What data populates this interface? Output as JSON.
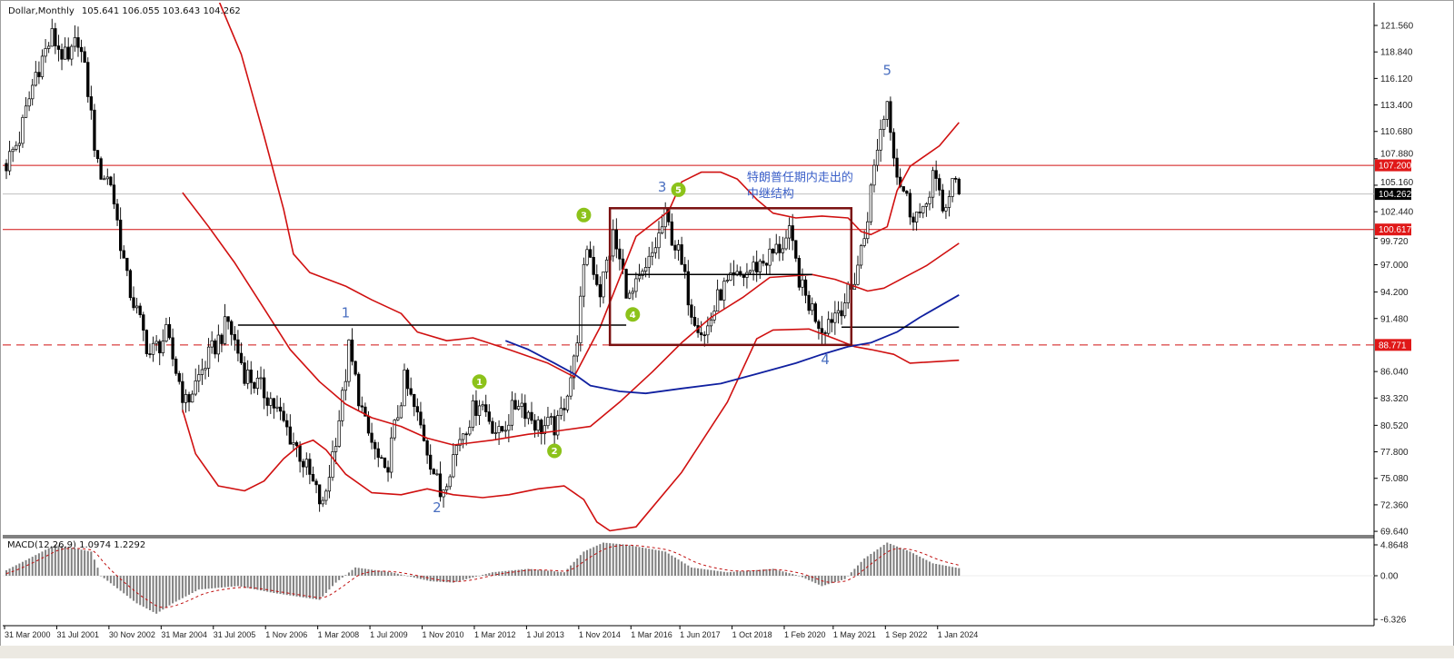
{
  "header": {
    "symbol": "Dollar,Monthly",
    "ohlc": "105.641 106.055 103.643 104.262"
  },
  "colors": {
    "band": "#d01010",
    "ma": "#1020a0",
    "hline": "#d01010",
    "box": "#7a1010",
    "wave_label": "#4a6fc0",
    "circle": "#8cc21a",
    "macd_hist": "#808080",
    "macd_signal": "#c01010"
  },
  "chart_data": {
    "type": "candlestick",
    "title": "Dollar,Monthly",
    "ylim": [
      69.64,
      121.56
    ],
    "grid": false,
    "price_ticks": [
      "121.560",
      "118.840",
      "116.120",
      "113.400",
      "110.680",
      "107.880",
      "105.160",
      "102.440",
      "99.720",
      "97.000",
      "94.200",
      "91.480",
      "86.040",
      "83.320",
      "80.520",
      "77.800",
      "75.080",
      "72.360",
      "69.640"
    ],
    "time_ticks": [
      "31 Mar 2000",
      "31 Jul 2001",
      "30 Nov 2002",
      "31 Mar 2004",
      "31 Jul 2005",
      "1 Nov 2006",
      "1 Mar 2008",
      "1 Jul 2009",
      "1 Nov 2010",
      "1 Mar 2012",
      "1 Jul 2013",
      "1 Nov 2014",
      "1 Mar 2016",
      "1 Jun 2017",
      "1 Oct 2018",
      "1 Feb 2020",
      "1 May 2021",
      "1 Sep 2022",
      "1 Jan 2024"
    ],
    "close_path": [
      [
        "2000-03",
        107.4
      ],
      [
        "2000-07",
        110
      ],
      [
        "2000-12",
        116.7
      ],
      [
        "2001-05",
        120.4
      ],
      [
        "2001-10",
        117.6
      ],
      [
        "2002-01",
        120.4
      ],
      [
        "2002-04",
        114.9
      ],
      [
        "2002-07",
        106.9
      ],
      [
        "2002-11",
        105.5
      ],
      [
        "2003-04",
        95.3
      ],
      [
        "2003-11",
        87.8
      ],
      [
        "2004-04",
        89.7
      ],
      [
        "2004-10",
        82.7
      ],
      [
        "2005-04",
        86.9
      ],
      [
        "2005-11",
        91.1
      ],
      [
        "2006-04",
        86
      ],
      [
        "2006-12",
        83.2
      ],
      [
        "2007-09",
        77.6
      ],
      [
        "2008-04",
        72
      ],
      [
        "2008-10",
        83.2
      ],
      [
        "2008-12",
        88.3
      ],
      [
        "2009-05",
        80.4
      ],
      [
        "2009-11",
        75.2
      ],
      [
        "2010-05",
        85
      ],
      [
        "2010-11",
        79.4
      ],
      [
        "2011-04",
        73.4
      ],
      [
        "2011-10",
        79.4
      ],
      [
        "2012-04",
        83.2
      ],
      [
        "2012-10",
        79.4
      ],
      [
        "2013-04",
        83.2
      ],
      [
        "2013-10",
        80.4
      ],
      [
        "2014-04",
        80.4
      ],
      [
        "2014-09",
        86.9
      ],
      [
        "2015-01",
        99
      ],
      [
        "2015-05",
        94.3
      ],
      [
        "2015-09",
        99.9
      ],
      [
        "2016-02",
        93.4
      ],
      [
        "2016-07",
        96.2
      ],
      [
        "2017-01",
        101.8
      ],
      [
        "2017-05",
        98.1
      ],
      [
        "2017-09",
        92.5
      ],
      [
        "2018-01",
        89.7
      ],
      [
        "2018-06",
        94.3
      ],
      [
        "2019-02",
        96.2
      ],
      [
        "2019-10",
        98.1
      ],
      [
        "2020-03",
        99.9
      ],
      [
        "2020-07",
        94.3
      ],
      [
        "2021-01",
        90.6
      ],
      [
        "2021-06",
        92.5
      ],
      [
        "2021-10",
        94.3
      ],
      [
        "2022-02",
        99.9
      ],
      [
        "2022-06",
        109.3
      ],
      [
        "2022-09",
        113.9
      ],
      [
        "2022-12",
        106.5
      ],
      [
        "2023-04",
        102.7
      ],
      [
        "2023-08",
        101.8
      ],
      [
        "2023-11",
        106.5
      ],
      [
        "2024-02",
        102.3
      ],
      [
        "2024-05",
        105.5
      ],
      [
        "2024-07",
        104.262
      ]
    ],
    "upper_band": [
      [
        "2005-08",
        124.2
      ],
      [
        "2006-03",
        118.6
      ],
      [
        "2006-10",
        110.2
      ],
      [
        "2007-04",
        102.7
      ],
      [
        "2007-07",
        98.1
      ],
      [
        "2007-12",
        96.2
      ],
      [
        "2008-11",
        94.8
      ],
      [
        "2009-07",
        93.4
      ],
      [
        "2010-04",
        92.0
      ],
      [
        "2010-09",
        90.1
      ],
      [
        "2011-06",
        89.2
      ],
      [
        "2012-02",
        89.5
      ],
      [
        "2013-01",
        88.3
      ],
      [
        "2014-01",
        86.9
      ],
      [
        "2014-09",
        85.5
      ],
      [
        "2015-05",
        90.6
      ],
      [
        "2016-04",
        99.9
      ],
      [
        "2017-02",
        102.5
      ],
      [
        "2017-06",
        105.5
      ],
      [
        "2017-12",
        106.5
      ],
      [
        "2018-06",
        106.5
      ],
      [
        "2018-11",
        105.8
      ],
      [
        "2019-05",
        103.7
      ],
      [
        "2019-10",
        102.3
      ],
      [
        "2020-05",
        101.8
      ],
      [
        "2021-01",
        102.0
      ],
      [
        "2021-09",
        101.8
      ],
      [
        "2022-01",
        100.4
      ],
      [
        "2022-04",
        100.1
      ],
      [
        "2022-09",
        100.9
      ],
      [
        "2022-12",
        104.6
      ],
      [
        "2023-04",
        107.1
      ],
      [
        "2024-01",
        109.2
      ],
      [
        "2024-07",
        111.6
      ]
    ],
    "middle_band": [
      [
        "2004-09",
        104.4
      ],
      [
        "2005-05",
        100.9
      ],
      [
        "2006-01",
        97.2
      ],
      [
        "2006-10",
        92.5
      ],
      [
        "2007-06",
        88.3
      ],
      [
        "2008-03",
        85.0
      ],
      [
        "2008-11",
        82.7
      ],
      [
        "2009-07",
        81.3
      ],
      [
        "2010-04",
        80.4
      ],
      [
        "2010-12",
        79.2
      ],
      [
        "2011-08",
        78.5
      ],
      [
        "2012-08",
        79.0
      ],
      [
        "2013-07",
        79.6
      ],
      [
        "2014-03",
        79.9
      ],
      [
        "2015-02",
        80.4
      ],
      [
        "2015-11",
        82.9
      ],
      [
        "2016-09",
        86.0
      ],
      [
        "2017-06",
        89.0
      ],
      [
        "2018-03",
        91.6
      ],
      [
        "2019-01",
        93.7
      ],
      [
        "2019-09",
        95.7
      ],
      [
        "2020-10",
        96.0
      ],
      [
        "2021-05",
        95.5
      ],
      [
        "2022-03",
        94.3
      ],
      [
        "2022-08",
        94.6
      ],
      [
        "2023-09",
        96.9
      ],
      [
        "2024-07",
        99.2
      ]
    ],
    "lower_band": [
      [
        "2004-09",
        82.1
      ],
      [
        "2005-01",
        77.6
      ],
      [
        "2005-08",
        74.3
      ],
      [
        "2006-04",
        73.8
      ],
      [
        "2006-10",
        74.8
      ],
      [
        "2007-04",
        77.1
      ],
      [
        "2007-09",
        78.5
      ],
      [
        "2008-01",
        79.0
      ],
      [
        "2008-05",
        78.0
      ],
      [
        "2008-11",
        75.5
      ],
      [
        "2009-07",
        73.6
      ],
      [
        "2010-04",
        73.4
      ],
      [
        "2010-12",
        74.0
      ],
      [
        "2011-08",
        73.4
      ],
      [
        "2012-05",
        73.1
      ],
      [
        "2013-01",
        73.4
      ],
      [
        "2013-10",
        74.0
      ],
      [
        "2014-06",
        74.3
      ],
      [
        "2014-12",
        72.9
      ],
      [
        "2015-04",
        70.6
      ],
      [
        "2015-08",
        69.7
      ],
      [
        "2016-04",
        70.1
      ],
      [
        "2017-06",
        75.7
      ],
      [
        "2018-08",
        82.9
      ],
      [
        "2019-05",
        89.4
      ],
      [
        "2019-10",
        90.3
      ],
      [
        "2020-09",
        90.4
      ],
      [
        "2021-05",
        89.4
      ],
      [
        "2021-11",
        88.6
      ],
      [
        "2022-04",
        88.3
      ],
      [
        "2022-11",
        87.8
      ],
      [
        "2023-04",
        86.9
      ],
      [
        "2024-07",
        87.2
      ]
    ],
    "moving_average": [
      [
        "2012-12",
        89.2
      ],
      [
        "2013-07",
        88.3
      ],
      [
        "2014-03",
        86.9
      ],
      [
        "2014-09",
        85.8
      ],
      [
        "2015-02",
        84.6
      ],
      [
        "2015-11",
        84.0
      ],
      [
        "2016-07",
        83.8
      ],
      [
        "2017-06",
        84.3
      ],
      [
        "2018-06",
        84.8
      ],
      [
        "2019-05",
        85.8
      ],
      [
        "2020-05",
        86.9
      ],
      [
        "2021-01",
        87.8
      ],
      [
        "2021-09",
        88.6
      ],
      [
        "2022-04",
        89.0
      ],
      [
        "2022-12",
        90.1
      ],
      [
        "2023-07",
        91.6
      ],
      [
        "2024-07",
        93.9
      ]
    ],
    "horizontal_levels": [
      {
        "price": 107.2,
        "label": "107.200",
        "style": "solid"
      },
      {
        "price": 100.617,
        "label": "100.617",
        "style": "solid"
      },
      {
        "price": 88.771,
        "label": "88.771",
        "style": "dashed"
      }
    ],
    "current_price": {
      "price": 104.262,
      "label": "104.262"
    },
    "segments": [
      {
        "from": "2006-02",
        "to": "2016-01",
        "price": 90.8
      },
      {
        "from": "2016-01",
        "to": "2020-10",
        "price": 96.0
      },
      {
        "from": "2021-07",
        "to": "2024-07",
        "price": 90.6
      }
    ],
    "box": {
      "from": "2015-08",
      "to": "2021-10",
      "top": 102.8,
      "bottom": 88.771
    },
    "wave_labels": [
      {
        "text": "1",
        "date": "2008-11",
        "price": 91.6
      },
      {
        "text": "2",
        "date": "2011-03",
        "price": 71.6
      },
      {
        "text": "3",
        "date": "2016-12",
        "price": 104.5
      },
      {
        "text": "4",
        "date": "2021-02",
        "price": 86.8
      },
      {
        "text": "5",
        "date": "2022-09",
        "price": 116.5
      }
    ],
    "circle_labels": [
      {
        "text": "1",
        "date": "2012-04",
        "price": 85.0
      },
      {
        "text": "2",
        "date": "2014-03",
        "price": 77.9
      },
      {
        "text": "3",
        "date": "2014-12",
        "price": 102.1
      },
      {
        "text": "4",
        "date": "2016-03",
        "price": 91.9
      },
      {
        "text": "5",
        "date": "2017-05",
        "price": 104.7
      }
    ],
    "annotation": {
      "line1": "特朗普任期内走出的",
      "line2": "中继结构",
      "date": "2019-02",
      "price": 105.6
    },
    "macd": {
      "label": "MACD(12,26,9) 1.0974 1.2292",
      "ticks": [
        "4.8648",
        "0.00",
        "-6.326"
      ],
      "ylim": [
        -6.326,
        4.8648
      ],
      "points": [
        [
          "2000-03",
          0.8
        ],
        [
          "2000-10",
          2.5
        ],
        [
          "2001-06",
          4.5
        ],
        [
          "2002-05",
          3.5
        ],
        [
          "2002-08",
          0
        ],
        [
          "2003-07",
          -4
        ],
        [
          "2004-01",
          -5.5
        ],
        [
          "2004-06",
          -4
        ],
        [
          "2005-02",
          -2
        ],
        [
          "2006-02",
          -1.5
        ],
        [
          "2007-01",
          -2.5
        ],
        [
          "2008-03",
          -3.5
        ],
        [
          "2008-08",
          -1
        ],
        [
          "2009-02",
          1.2
        ],
        [
          "2010-01",
          0.5
        ],
        [
          "2011-01",
          -0.8
        ],
        [
          "2011-08",
          -1
        ],
        [
          "2012-08",
          0.5
        ],
        [
          "2013-07",
          1
        ],
        [
          "2014-06",
          0.5
        ],
        [
          "2014-12",
          3.5
        ],
        [
          "2015-06",
          4.8
        ],
        [
          "2016-01",
          4.5
        ],
        [
          "2017-01",
          3.5
        ],
        [
          "2017-09",
          1.2
        ],
        [
          "2018-08",
          0.5
        ],
        [
          "2019-10",
          1
        ],
        [
          "2020-06",
          0
        ],
        [
          "2021-01",
          -1.5
        ],
        [
          "2021-08",
          -0.5
        ],
        [
          "2022-02",
          2.5
        ],
        [
          "2022-09",
          4.8
        ],
        [
          "2023-04",
          3.5
        ],
        [
          "2023-11",
          1.8
        ],
        [
          "2024-07",
          1.1
        ]
      ]
    }
  }
}
